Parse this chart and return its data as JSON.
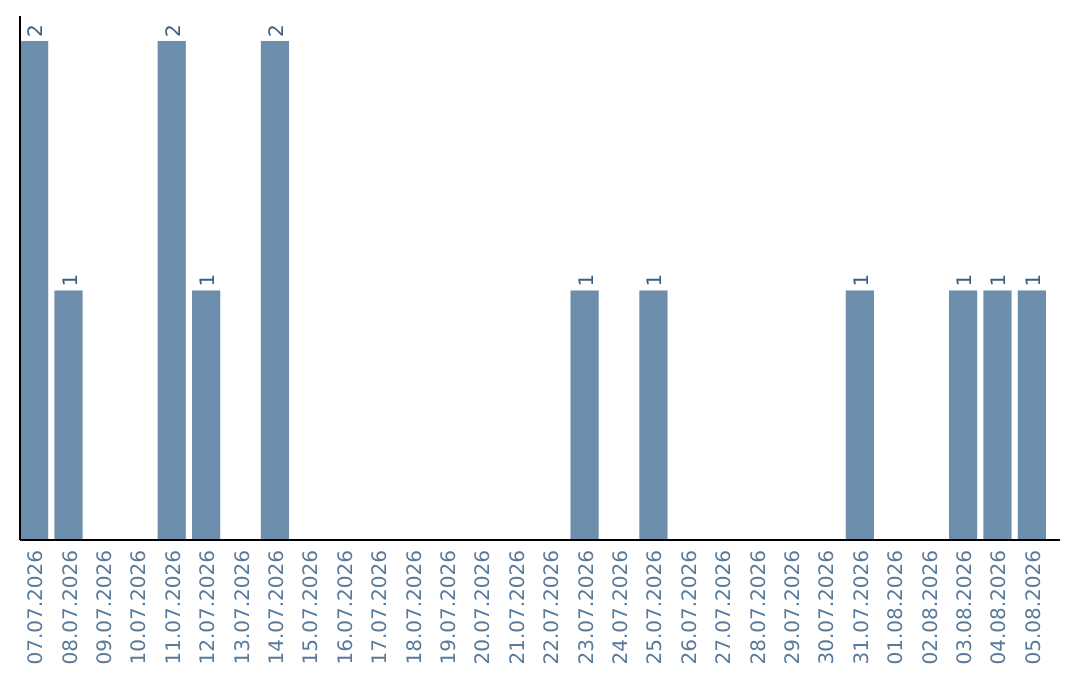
{
  "chart_data": {
    "type": "bar",
    "categories": [
      "07.07.2026",
      "08.07.2026",
      "09.07.2026",
      "10.07.2026",
      "11.07.2026",
      "12.07.2026",
      "13.07.2026",
      "14.07.2026",
      "15.07.2026",
      "16.07.2026",
      "17.07.2026",
      "18.07.2026",
      "19.07.2026",
      "20.07.2026",
      "21.07.2026",
      "22.07.2026",
      "23.07.2026",
      "24.07.2026",
      "25.07.2026",
      "26.07.2026",
      "27.07.2026",
      "28.07.2026",
      "29.07.2026",
      "30.07.2026",
      "31.07.2026",
      "01.08.2026",
      "02.08.2026",
      "03.08.2026",
      "04.08.2026",
      "05.08.2026"
    ],
    "values": [
      2,
      1,
      0,
      0,
      2,
      1,
      0,
      2,
      0,
      0,
      0,
      0,
      0,
      0,
      0,
      0,
      1,
      0,
      1,
      0,
      0,
      0,
      0,
      0,
      1,
      0,
      0,
      1,
      1,
      1
    ],
    "value_labels": [
      "2",
      "1",
      null,
      null,
      "2",
      "1",
      null,
      "2",
      null,
      null,
      null,
      null,
      null,
      null,
      null,
      null,
      "1",
      null,
      "1",
      null,
      null,
      null,
      null,
      null,
      "1",
      null,
      null,
      "1",
      "1",
      "1"
    ],
    "color": "#6c8dab",
    "ylim": [
      0,
      2.1
    ],
    "tick_labels": "x"
  }
}
